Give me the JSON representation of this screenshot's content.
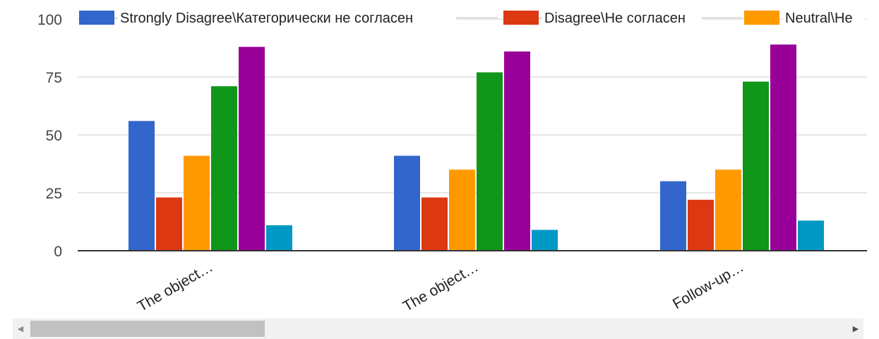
{
  "chart_data": {
    "type": "bar",
    "categories": [
      "The object…",
      "The object…",
      "Follow-up…"
    ],
    "series": [
      {
        "name": "Strongly Disagree\\Категорически не согласен",
        "color": "#3366cc",
        "values": [
          56,
          41,
          30
        ]
      },
      {
        "name": "Disagree\\Не согласен",
        "color": "#dc3912",
        "values": [
          23,
          23,
          22
        ]
      },
      {
        "name": "Neutral\\Не",
        "color": "#ff9900",
        "values": [
          41,
          35,
          35
        ]
      },
      {
        "name": "",
        "color": "#109618",
        "values": [
          71,
          77,
          73
        ]
      },
      {
        "name": "",
        "color": "#990099",
        "values": [
          88,
          86,
          89
        ]
      },
      {
        "name": "",
        "color": "#0099c6",
        "values": [
          11,
          9,
          13
        ]
      }
    ],
    "y_ticks": [
      "0",
      "25",
      "50",
      "75",
      "100"
    ],
    "ylim": [
      0,
      100
    ],
    "grid": true,
    "legend_position": "top",
    "xlabel": "",
    "ylabel": ""
  },
  "scrollbar": {
    "left_arrow": "◀",
    "right_arrow": "▶"
  }
}
